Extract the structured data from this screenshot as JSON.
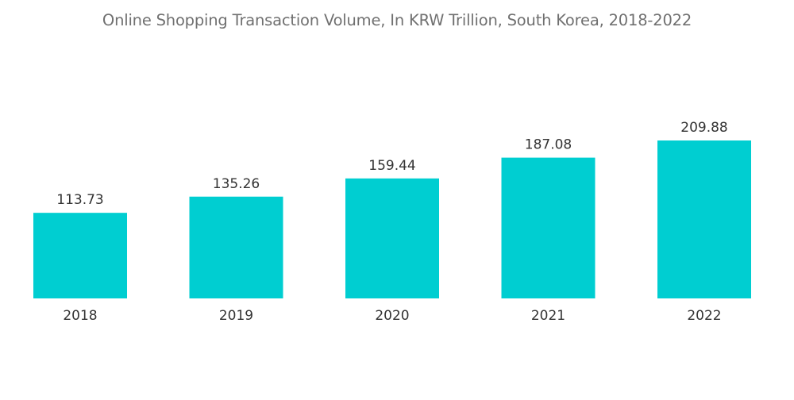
{
  "chart_data": {
    "type": "bar",
    "title": "Online Shopping Transaction Volume, In KRW Trillion, South Korea, 2018-2022",
    "categories": [
      "2018",
      "2019",
      "2020",
      "2021",
      "2022"
    ],
    "values": [
      113.73,
      135.26,
      159.44,
      187.08,
      209.88
    ],
    "value_labels": [
      "113.73",
      "135.26",
      "159.44",
      "187.08",
      "209.88"
    ],
    "xlabel": "",
    "ylabel": "",
    "ylim": [
      0,
      209.88
    ],
    "grid": false,
    "legend": "none",
    "bar_color": "#00CED1"
  }
}
